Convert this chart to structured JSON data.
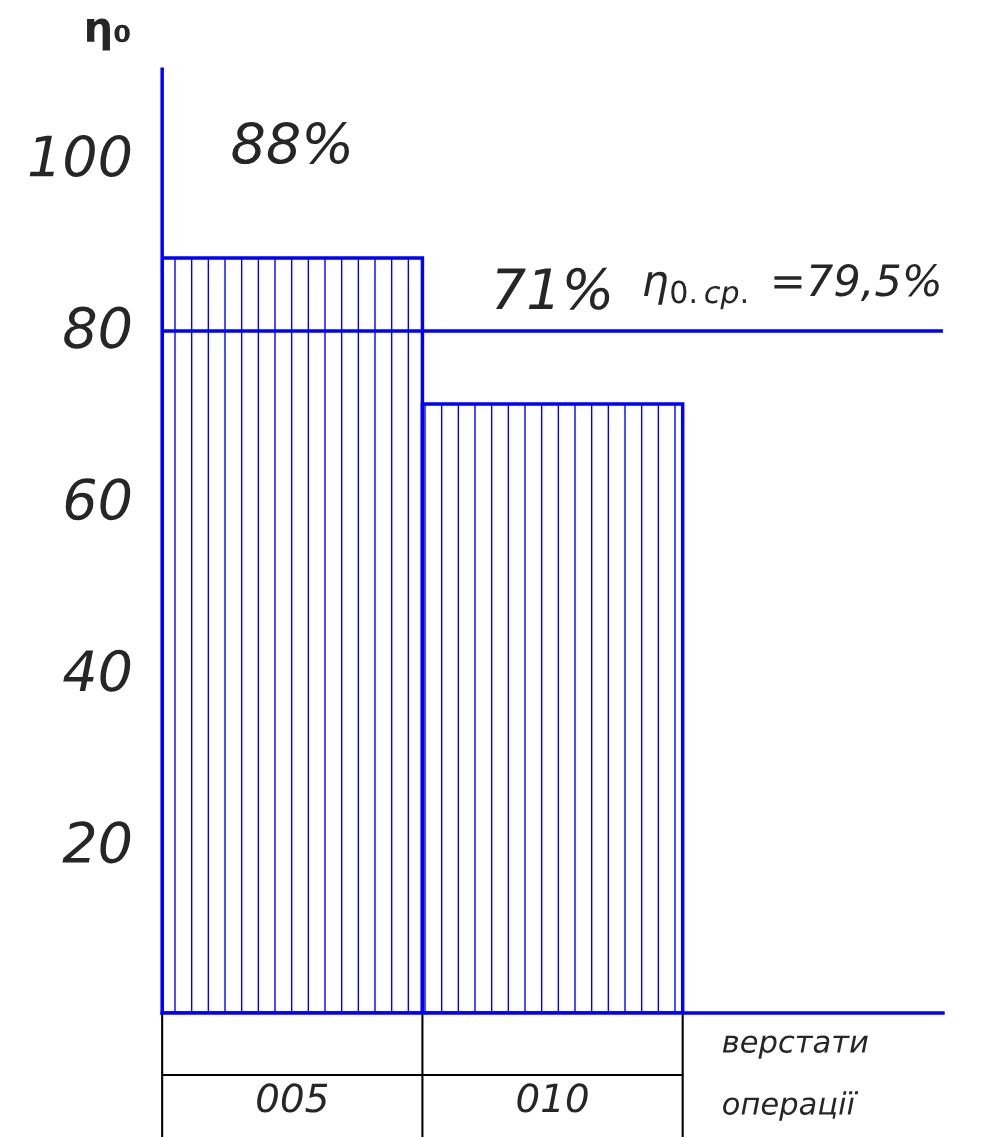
{
  "chart_data": {
    "type": "bar",
    "ylabel": "η₀",
    "categories": [
      "005",
      "010"
    ],
    "values": [
      88,
      71
    ],
    "value_labels": [
      "88%",
      "71%"
    ],
    "color": "#0000ff",
    "ylim": [
      0,
      110
    ],
    "yticks": [
      20,
      40,
      60,
      80,
      100
    ],
    "ref_lines": [
      {
        "axis": "y",
        "value": 79.5,
        "label": "η$_{0.ср.}$ =79,5%",
        "color": "#0000ff"
      }
    ],
    "annotations": [
      "верстати",
      "операції"
    ],
    "grid": false
  }
}
